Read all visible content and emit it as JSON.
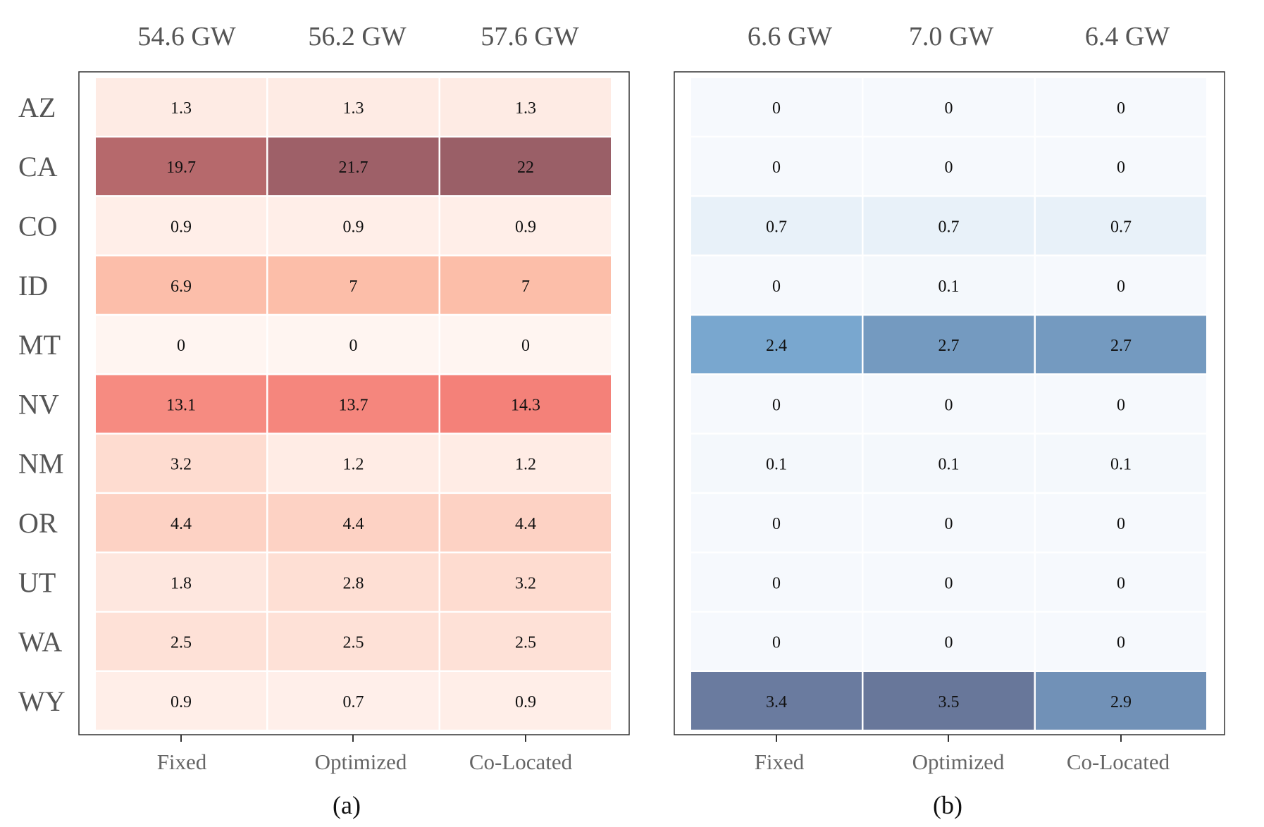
{
  "chart_data": [
    {
      "type": "heatmap",
      "panel_label": "(a)",
      "palette": "reds",
      "column_totals": [
        "54.6 GW",
        "56.2 GW",
        "57.6 GW"
      ],
      "columns": [
        "Fixed",
        "Optimized",
        "Co-Located"
      ],
      "rows": [
        "AZ",
        "CA",
        "CO",
        "ID",
        "MT",
        "NV",
        "NM",
        "OR",
        "UT",
        "WA",
        "WY"
      ],
      "values": [
        [
          1.3,
          1.3,
          1.3
        ],
        [
          19.7,
          21.7,
          22
        ],
        [
          0.9,
          0.9,
          0.9
        ],
        [
          6.9,
          7,
          7
        ],
        [
          0,
          0,
          0
        ],
        [
          13.1,
          13.7,
          14.3
        ],
        [
          3.2,
          1.2,
          1.2
        ],
        [
          4.4,
          4.4,
          4.4
        ],
        [
          1.8,
          2.8,
          3.2
        ],
        [
          2.5,
          2.5,
          2.5
        ],
        [
          0.9,
          0.7,
          0.9
        ]
      ],
      "value_labels": [
        [
          "1.3",
          "1.3",
          "1.3"
        ],
        [
          "19.7",
          "21.7",
          "22"
        ],
        [
          "0.9",
          "0.9",
          "0.9"
        ],
        [
          "6.9",
          "7",
          "7"
        ],
        [
          "0",
          "0",
          "0"
        ],
        [
          "13.1",
          "13.7",
          "14.3"
        ],
        [
          "3.2",
          "1.2",
          "1.2"
        ],
        [
          "4.4",
          "4.4",
          "4.4"
        ],
        [
          "1.8",
          "2.8",
          "3.2"
        ],
        [
          "2.5",
          "2.5",
          "2.5"
        ],
        [
          "0.9",
          "0.7",
          "0.9"
        ]
      ],
      "color_range": [
        0,
        22
      ]
    },
    {
      "type": "heatmap",
      "panel_label": "(b)",
      "palette": "blues",
      "column_totals": [
        "6.6 GW",
        "7.0 GW",
        "6.4 GW"
      ],
      "columns": [
        "Fixed",
        "Optimized",
        "Co-Located"
      ],
      "rows": [
        "AZ",
        "CA",
        "CO",
        "ID",
        "MT",
        "NV",
        "NM",
        "OR",
        "UT",
        "WA",
        "WY"
      ],
      "values": [
        [
          0,
          0,
          0
        ],
        [
          0,
          0,
          0
        ],
        [
          0.7,
          0.7,
          0.7
        ],
        [
          0,
          0.1,
          0
        ],
        [
          2.4,
          2.7,
          2.7
        ],
        [
          0,
          0,
          0
        ],
        [
          0.1,
          0.1,
          0.1
        ],
        [
          0,
          0,
          0
        ],
        [
          0,
          0,
          0
        ],
        [
          0,
          0,
          0
        ],
        [
          3.4,
          3.5,
          2.9
        ]
      ],
      "value_labels": [
        [
          "0",
          "0",
          "0"
        ],
        [
          "0",
          "0",
          "0"
        ],
        [
          "0.7",
          "0.7",
          "0.7"
        ],
        [
          "0",
          "0.1",
          "0"
        ],
        [
          "2.4",
          "2.7",
          "2.7"
        ],
        [
          "0",
          "0",
          "0"
        ],
        [
          "0.1",
          "0.1",
          "0.1"
        ],
        [
          "0",
          "0",
          "0"
        ],
        [
          "0",
          "0",
          "0"
        ],
        [
          "0",
          "0",
          "0"
        ],
        [
          "3.4",
          "3.5",
          "2.9"
        ]
      ],
      "color_range": [
        0,
        3.5
      ]
    }
  ],
  "colors": {
    "reds": [
      "#fff5f1",
      "#fcbba6",
      "#f47e77",
      "#9a5f67"
    ],
    "blues": [
      "#f6f9fd",
      "#dfebf6",
      "#7aaad2",
      "#68779a"
    ]
  }
}
